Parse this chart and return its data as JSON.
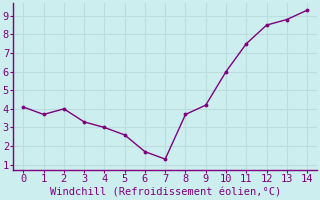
{
  "x": [
    0,
    1,
    2,
    3,
    4,
    5,
    6,
    7,
    8,
    9,
    10,
    11,
    12,
    13,
    14
  ],
  "y": [
    4.1,
    3.7,
    4.0,
    3.3,
    3.0,
    2.6,
    1.7,
    1.3,
    3.7,
    4.2,
    6.0,
    7.5,
    8.5,
    8.8,
    9.3
  ],
  "line_color": "#800080",
  "marker_color": "#800080",
  "background_color": "#cceeee",
  "grid_color": "#bbdddd",
  "xlabel": "Windchill (Refroidissement éolien,°C)",
  "xlabel_color": "#800080",
  "xlim": [
    -0.5,
    14.5
  ],
  "ylim": [
    0.7,
    9.7
  ],
  "xticks": [
    0,
    1,
    2,
    3,
    4,
    5,
    6,
    7,
    8,
    9,
    10,
    11,
    12,
    13,
    14
  ],
  "yticks": [
    1,
    2,
    3,
    4,
    5,
    6,
    7,
    8,
    9
  ],
  "tick_color": "#800080",
  "spine_color": "#800080",
  "font_size": 7.5,
  "xlabel_fontsize": 7.5
}
